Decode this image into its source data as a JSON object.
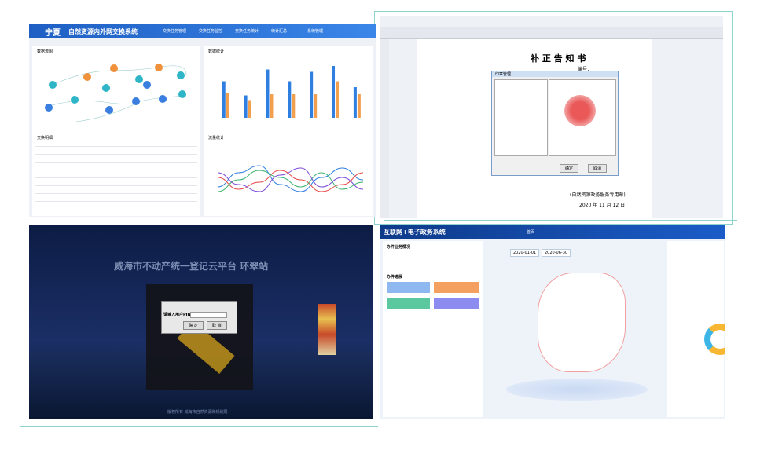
{
  "top_left": {
    "brand": "宁夏",
    "title": "自然资源内外网交换系统",
    "nav": [
      "交换任务管理",
      "交换任务监控",
      "交换任务统计",
      "统计汇总",
      "系统管理"
    ],
    "panels": [
      "数据流图",
      "数据统计",
      "交换明细",
      "流量统计"
    ],
    "bar_chart": {
      "type": "bar",
      "ylim": [
        0,
        100
      ],
      "series": [
        {
          "color": "#2f7fe0",
          "values": [
            62,
            38,
            82,
            62,
            78,
            88,
            52
          ]
        },
        {
          "color": "#f3a04e",
          "values": [
            42,
            30,
            40,
            40,
            40,
            62,
            40
          ]
        }
      ]
    },
    "line_chart": {
      "type": "line",
      "ylim": [
        0,
        100
      ],
      "series": [
        {
          "color": "#2f7fe0",
          "values": [
            40,
            70,
            85,
            45,
            30,
            60,
            80,
            55
          ]
        },
        {
          "color": "#e84a4a",
          "values": [
            60,
            35,
            50,
            75,
            55,
            30,
            45,
            70
          ]
        },
        {
          "color": "#3cb371",
          "values": [
            30,
            55,
            75,
            60,
            40,
            70,
            35,
            50
          ]
        },
        {
          "color": "#7b4ad8",
          "values": [
            70,
            45,
            30,
            65,
            80,
            40,
            60,
            35
          ]
        }
      ]
    }
  },
  "top_right": {
    "doc_title": "补 正 告 知 书",
    "doc_no": "编号：",
    "dialog_title": "印章管理",
    "ok": "确定",
    "cancel": "取消",
    "seal_note": "(自然资源政务服务专用章)",
    "date": "2020 年 11 月 12 日"
  },
  "bottom_left": {
    "title": "威海市不动产统一登记云平台 环翠站",
    "prompt": "请输入用户PIN口令",
    "ok": "确 定",
    "cancel": "取 消",
    "footer": "版权所有 威海市自然资源和规划局"
  },
  "bottom_right": {
    "title": "互联网+电子政务系统",
    "nav": [
      "首页"
    ],
    "left_sections": [
      "办件业务情况",
      "办件进展"
    ],
    "date_from": "2020-01-01",
    "date_to": "2020-06-30"
  }
}
